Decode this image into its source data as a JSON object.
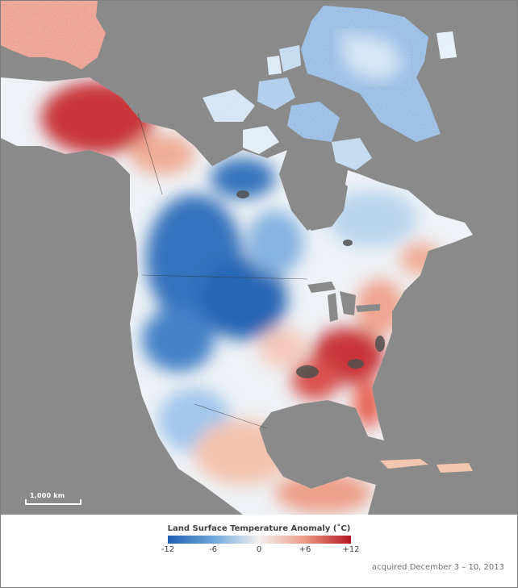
{
  "map": {
    "scale_bar_label": "1,000 km",
    "colors": {
      "ocean": "#8a8a8a",
      "no_data": "#4f4f4f",
      "cold_strong": "#1f5fb0",
      "cold": "#4a8fd0",
      "cool": "#a9cbea",
      "neutral": "#f4f1ef",
      "warm": "#f3b9a5",
      "hot": "#e26a5a",
      "hot_strong": "#b3151f"
    }
  },
  "legend": {
    "title": "Land Surface Temperature Anomaly (˚C)",
    "ticks": [
      "-12",
      "-6",
      "0",
      "+6",
      "+12"
    ],
    "colors": [
      "#1f5fb0",
      "#6fa7dc",
      "#f4f1ef",
      "#ec9a83",
      "#b3151f"
    ]
  },
  "caption": "acquired December 3 – 10, 2013"
}
